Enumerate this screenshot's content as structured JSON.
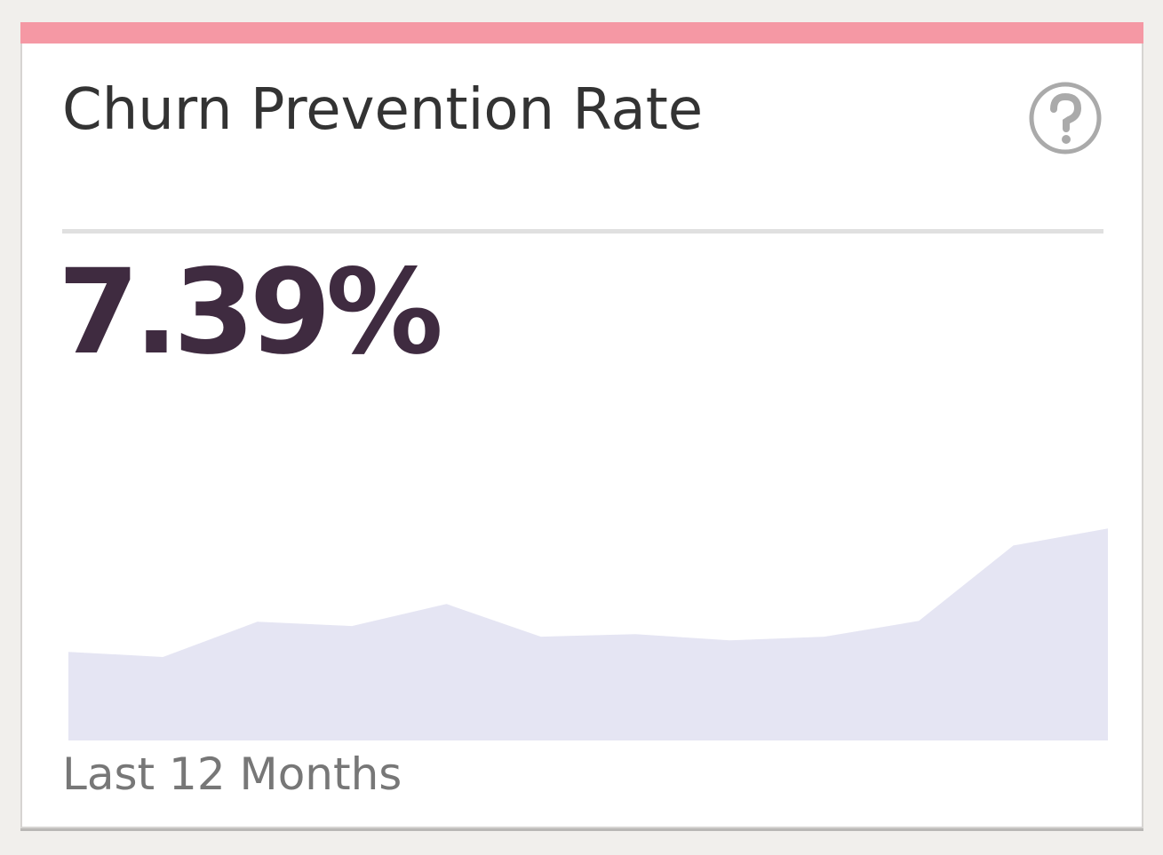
{
  "card": {
    "title": "Churn Prevention Rate",
    "value": "7.39%",
    "caption": "Last 12 Months",
    "sparkline": {
      "type": "area",
      "values": [
        3.09,
        2.91,
        4.14,
        3.99,
        4.76,
        3.62,
        3.71,
        3.49,
        3.62,
        4.17,
        6.8,
        7.39
      ],
      "ylim": [
        0,
        10
      ],
      "color": "#e5e5f3"
    }
  }
}
